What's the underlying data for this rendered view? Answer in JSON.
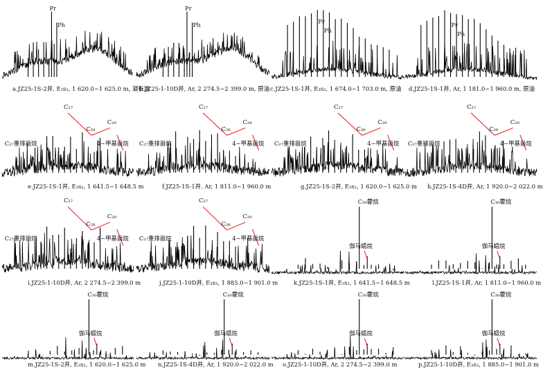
{
  "figure": {
    "panels": [
      {
        "id": "a",
        "kind": "gc_full",
        "caption": "a.JZ25-1S-2井, E₃s₂, 1 620.0~1 625.0 m, 凝析油",
        "peak_labels": [
          "Pr",
          "Ph"
        ]
      },
      {
        "id": "b",
        "kind": "gc_full",
        "caption": "b.JZ25-1-10D井, Ar, 2 274.5~2 399.0 m, 原油",
        "peak_labels": [
          "Pr",
          "Ph"
        ]
      },
      {
        "id": "c",
        "kind": "gc_alkane",
        "caption": "c.JZ25-1S-1井, E₃s₂, 1 674.0~1 703.0 m, 原油",
        "peak_labels": [
          "Pr",
          "Ph"
        ]
      },
      {
        "id": "d",
        "kind": "gc_alkane",
        "caption": "d.JZ25-1S-1井, Ar, 1 181.0~1 960.0 m, 原油",
        "peak_labels": [
          "Pr",
          "Ph"
        ]
      },
      {
        "id": "e",
        "kind": "sterane",
        "caption": "e.JZ25-1S-1井, E₃s₂, 1 641.5~1 648.5 m",
        "labels": [
          "C₂₇",
          "C₂₈",
          "C₂₉",
          "C₂₇重排甾烷",
          "4−甲基甾烷"
        ]
      },
      {
        "id": "f",
        "kind": "sterane",
        "caption": "f.JZ25-1S-1井, Ar, 1 811.0~1 960.0 m",
        "labels": [
          "C₂₇",
          "C₂₈",
          "C₂₉",
          "C₂₇重排甾烷",
          "4−甲基甾烷"
        ]
      },
      {
        "id": "g",
        "kind": "sterane",
        "caption": "g.JZ25-1S-2井, E₃s₂, 1 620.0~1 625.0 m",
        "labels": [
          "C₂₇",
          "C₂₈",
          "C₂₉",
          "C₂₇重排甾烷",
          "4−甲基甾烷"
        ]
      },
      {
        "id": "h",
        "kind": "sterane",
        "caption": "h.JZ25-1S-4D井, Ar, 1 920.0~2 022.0 m",
        "labels": [
          "C₂₇",
          "C₂₈",
          "C₂₉",
          "C₂₇重排甾烷",
          "4−甲基甾烷"
        ]
      },
      {
        "id": "i",
        "kind": "sterane",
        "caption": "i.JZ25-1-10D井, Ar, 2 274.5~2 399.0 m",
        "labels": [
          "C₂₇",
          "C₂₈",
          "C₂₉",
          "C₂₇重排甾烷",
          "4−甲基甾烷"
        ]
      },
      {
        "id": "j",
        "kind": "sterane",
        "caption": "j.JZ25-1-10D井, E₃s₃, 1 885.0~1 901.0 m",
        "labels": [
          "C₂₇",
          "C₂₈",
          "C₂₉",
          "C₂₇重排甾烷",
          "4−甲基甾烷"
        ]
      },
      {
        "id": "k",
        "kind": "terpane",
        "caption": "k.JZ25-1S-1井, E₃s₂, 1 641.5~1 648.5 m",
        "labels": [
          "C₃₀藿烷",
          "伽马蜡烷"
        ]
      },
      {
        "id": "l",
        "kind": "terpane",
        "caption": "l.JZ25-1S-1井, Ar, 1 811.0~1 960.0 m",
        "labels": [
          "C₃₀藿烷",
          "伽马蜡烷"
        ]
      },
      {
        "id": "m",
        "kind": "terpane",
        "caption": "m.JZ25-1S-2井, E₃s₂, 1 620.0~1 625.0 m",
        "labels": [
          "C₃₀藿烷",
          "伽马蜡烷"
        ]
      },
      {
        "id": "n",
        "kind": "terpane",
        "caption": "n.JZ25-1S-4D井, Ar, 1 920.0~2 022.0 m",
        "labels": [
          "C₃₀藿烷",
          "伽马蜡烷"
        ]
      },
      {
        "id": "o",
        "kind": "terpane",
        "caption": "o.JZ25-1-10D井, Ar, 2 274.5~2 399.0 m",
        "labels": [
          "C₃₀藿烷",
          "伽马蜡烷"
        ]
      },
      {
        "id": "p",
        "kind": "terpane",
        "caption": "p.JZ25-1-10D井, E₃s₃, 1 885.0~1 901.0 m",
        "labels": [
          "C₃₀藿烷",
          "伽马蜡烷"
        ]
      }
    ]
  },
  "colors": {
    "trace": "#000000",
    "annotation_line": "#e8141c",
    "text": "#111111"
  }
}
